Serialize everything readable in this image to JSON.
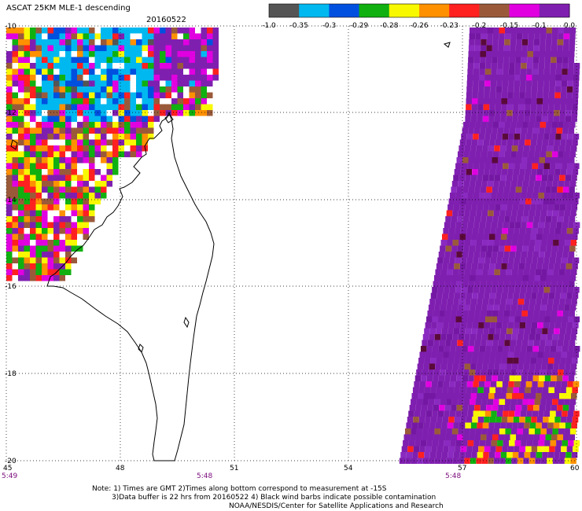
{
  "title": {
    "main": "ASCAT 25KM MLE-1 descending",
    "date": "20160522"
  },
  "colorbar": {
    "colors": [
      "#555555",
      "#00b8f0",
      "#0050e0",
      "#10b010",
      "#f8f800",
      "#ff9000",
      "#ff2020",
      "#9a5a3a",
      "#e000e0",
      "#7f1fb0"
    ],
    "labels": [
      "-1.0",
      "-0.35",
      "-0.3",
      "-0.29",
      "-0.28",
      "-0.26",
      "-0.23",
      "-0.2",
      "-0.15",
      "-0.1",
      "0.0"
    ]
  },
  "axes": {
    "y_ticks": [
      "-10",
      "-12",
      "-14",
      "-16",
      "-18",
      "-20"
    ],
    "x_ticks": [
      "45",
      "48",
      "51",
      "54",
      "57",
      "60"
    ]
  },
  "times": [
    "5:49",
    "5:48",
    "5:48"
  ],
  "notes": {
    "line1": "Note: 1) Times are GMT 2)Times along bottom correspond to measurement at -15S",
    "line2": "3)Data buffer is 22 hrs from 20160522 4) Black wind barbs indicate possible contamination",
    "line3": "NOAA/NESDIS/Center for Satellite Applications and Research"
  },
  "map": {
    "lon_range": [
      45,
      60
    ],
    "lat_range": [
      -20,
      -10
    ],
    "land_color": "#ffffff",
    "swath": {
      "west_purple_color": "#7f1fb0",
      "east_purple_color": "#7f1fb0"
    }
  }
}
